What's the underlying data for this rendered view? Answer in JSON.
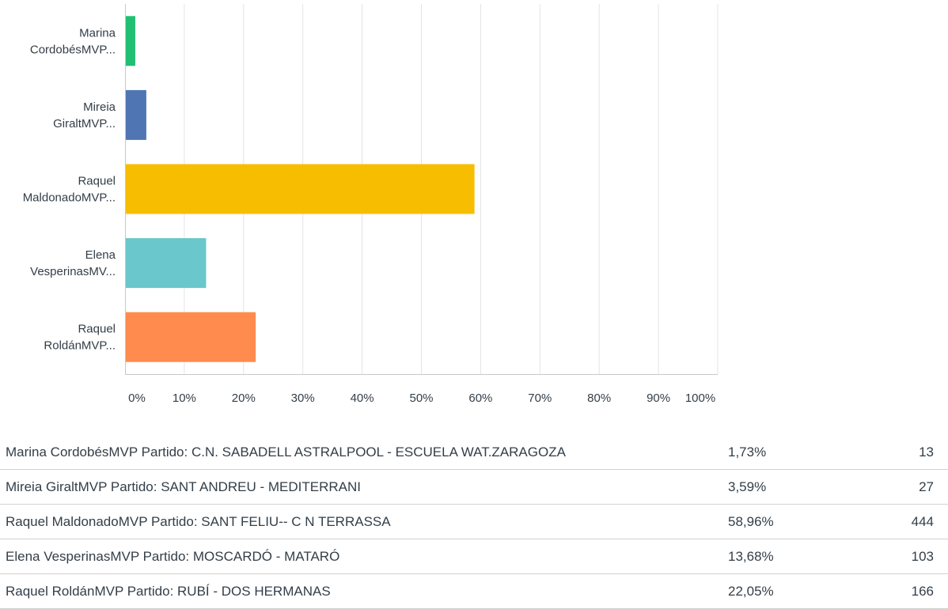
{
  "chart_data": {
    "type": "bar",
    "orientation": "horizontal",
    "categories": [
      [
        "Marina",
        "CordobésMVP..."
      ],
      [
        "Mireia",
        "GiraltMVP..."
      ],
      [
        "Raquel",
        "MaldonadoMVP..."
      ],
      [
        "Elena",
        "VesperinasMV..."
      ],
      [
        "Raquel",
        "RoldánMVP..."
      ]
    ],
    "values": [
      1.73,
      3.59,
      58.96,
      13.68,
      22.05
    ],
    "colors": [
      "#21bf73",
      "#4f76b3",
      "#f7bd00",
      "#6ac7cb",
      "#ff8b4f"
    ],
    "xlim": [
      0,
      100
    ],
    "xticks": [
      "0%",
      "10%",
      "20%",
      "30%",
      "40%",
      "50%",
      "60%",
      "70%",
      "80%",
      "90%",
      "100%"
    ],
    "grid": true
  },
  "table": {
    "rows": [
      {
        "label": "Marina CordobésMVP Partido: C.N. SABADELL ASTRALPOOL - ESCUELA WAT.ZARAGOZA",
        "percent": "1,73%",
        "count": "13"
      },
      {
        "label": "Mireia GiraltMVP Partido: SANT ANDREU - MEDITERRANI",
        "percent": "3,59%",
        "count": "27"
      },
      {
        "label": "Raquel MaldonadoMVP Partido: SANT FELIU-- C N TERRASSA",
        "percent": "58,96%",
        "count": "444"
      },
      {
        "label": "Elena VesperinasMVP Partido: MOSCARDÓ - MATARÓ",
        "percent": "13,68%",
        "count": "103"
      },
      {
        "label": "Raquel RoldánMVP Partido: RUBÍ - DOS HERMANAS",
        "percent": "22,05%",
        "count": "166"
      }
    ]
  }
}
